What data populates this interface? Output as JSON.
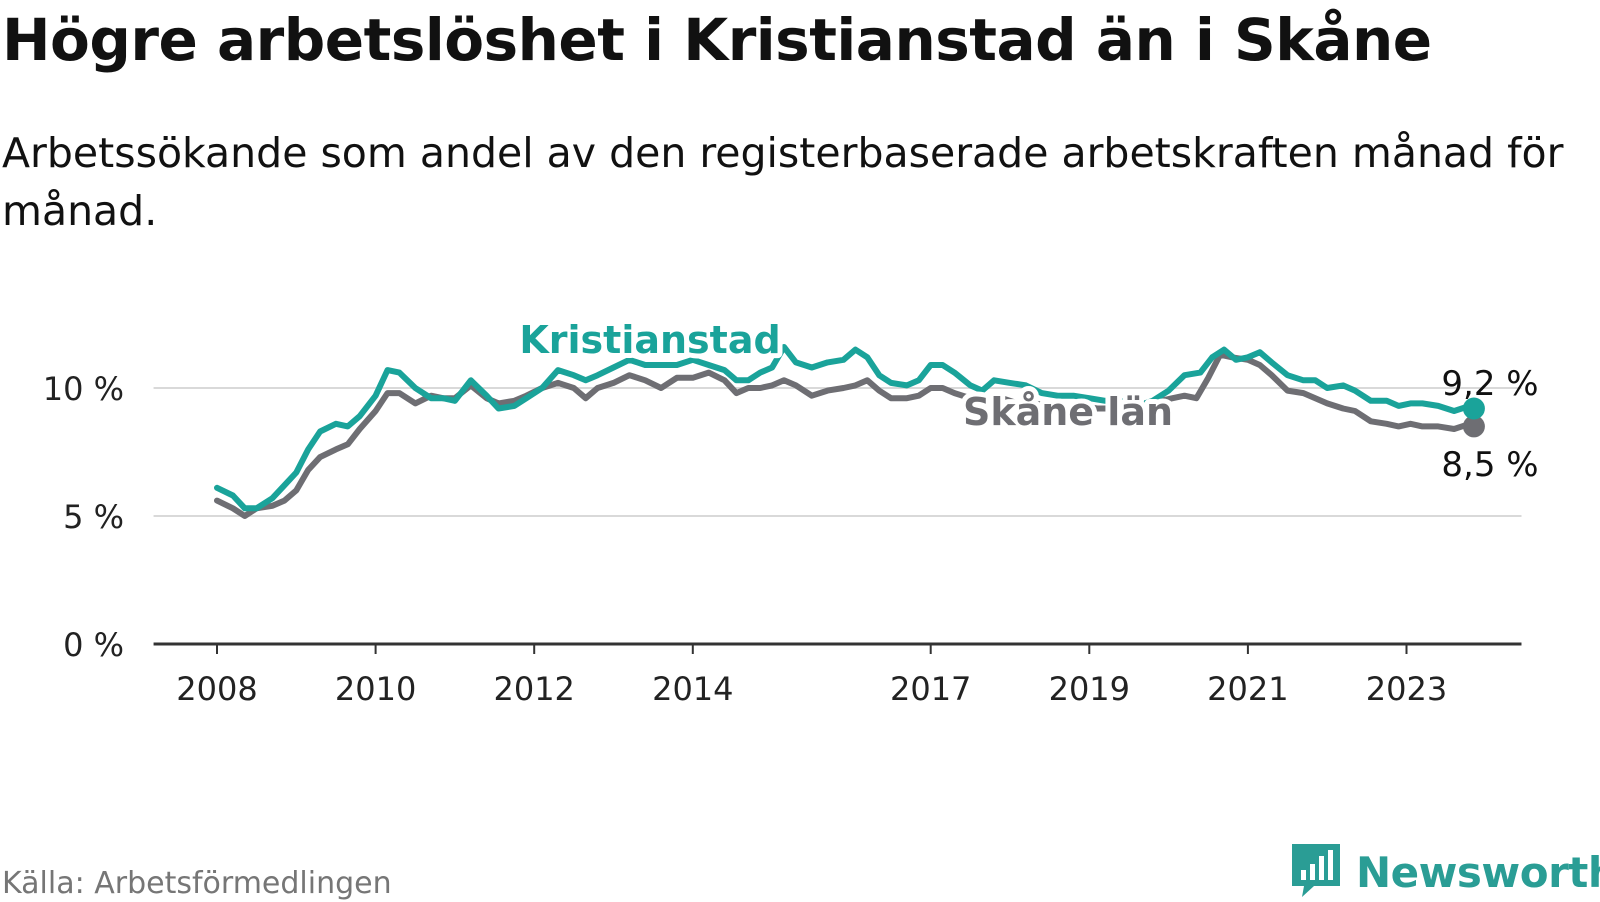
{
  "title": "Högre arbetslöshet i Kristianstad än i Skåne",
  "subtitle": "Arbetssökande som andel av den registerbaserade arbetskraften månad för månad.",
  "source": "Källa: Arbetsförmedlingen",
  "brand": {
    "name": "Newsworthy",
    "icon": "newsworthy-logo-icon",
    "color": "#2a9d95"
  },
  "colors": {
    "kristianstad": "#1aa39a",
    "skane": "#6e6e73",
    "grid": "#d9d9d9",
    "axis": "#333333"
  },
  "chart_data": {
    "type": "line",
    "title": "Högre arbetslöshet i Kristianstad än i Skåne",
    "xlabel": "",
    "ylabel": "",
    "ylim": [
      0,
      10.5
    ],
    "xlim": [
      2007.2,
      2024.45
    ],
    "yticks": [
      0,
      5,
      10
    ],
    "ytick_labels": [
      "0 %",
      "5 %",
      "10 %"
    ],
    "xticks": [
      2008,
      2010,
      2012,
      2014,
      2017,
      2019,
      2021,
      2023
    ],
    "xtick_labels": [
      "2008",
      "2010",
      "2012",
      "2014",
      "2017",
      "2019",
      "2021",
      "2023"
    ],
    "grid": true,
    "series": [
      {
        "name": "Kristianstad",
        "label": "Kristianstad",
        "end_label": "9,2 %",
        "points": [
          [
            2008.0,
            6.1
          ],
          [
            2008.2,
            5.8
          ],
          [
            2008.35,
            5.3
          ],
          [
            2008.5,
            5.3
          ],
          [
            2008.7,
            5.7
          ],
          [
            2008.85,
            6.2
          ],
          [
            2009.0,
            6.7
          ],
          [
            2009.15,
            7.6
          ],
          [
            2009.3,
            8.3
          ],
          [
            2009.5,
            8.6
          ],
          [
            2009.65,
            8.5
          ],
          [
            2009.8,
            8.9
          ],
          [
            2010.0,
            9.7
          ],
          [
            2010.15,
            10.7
          ],
          [
            2010.3,
            10.6
          ],
          [
            2010.5,
            10.0
          ],
          [
            2010.7,
            9.6
          ],
          [
            2010.85,
            9.6
          ],
          [
            2011.0,
            9.5
          ],
          [
            2011.2,
            10.3
          ],
          [
            2011.4,
            9.7
          ],
          [
            2011.55,
            9.2
          ],
          [
            2011.75,
            9.3
          ],
          [
            2011.9,
            9.6
          ],
          [
            2012.1,
            10.0
          ],
          [
            2012.3,
            10.7
          ],
          [
            2012.5,
            10.5
          ],
          [
            2012.65,
            10.3
          ],
          [
            2012.8,
            10.5
          ],
          [
            2013.0,
            10.8
          ],
          [
            2013.2,
            11.1
          ],
          [
            2013.4,
            10.9
          ],
          [
            2013.6,
            10.9
          ],
          [
            2013.8,
            10.9
          ],
          [
            2014.0,
            11.1
          ],
          [
            2014.2,
            10.9
          ],
          [
            2014.4,
            10.7
          ],
          [
            2014.55,
            10.3
          ],
          [
            2014.7,
            10.3
          ],
          [
            2014.85,
            10.6
          ],
          [
            2015.0,
            10.8
          ],
          [
            2015.15,
            11.6
          ],
          [
            2015.3,
            11.0
          ],
          [
            2015.5,
            10.8
          ],
          [
            2015.7,
            11.0
          ],
          [
            2015.9,
            11.1
          ],
          [
            2016.05,
            11.5
          ],
          [
            2016.2,
            11.2
          ],
          [
            2016.35,
            10.5
          ],
          [
            2016.5,
            10.2
          ],
          [
            2016.7,
            10.1
          ],
          [
            2016.85,
            10.3
          ],
          [
            2017.0,
            10.9
          ],
          [
            2017.15,
            10.9
          ],
          [
            2017.3,
            10.6
          ],
          [
            2017.5,
            10.1
          ],
          [
            2017.65,
            9.9
          ],
          [
            2017.8,
            10.3
          ],
          [
            2018.0,
            10.2
          ],
          [
            2018.2,
            10.1
          ],
          [
            2018.4,
            9.8
          ],
          [
            2018.6,
            9.7
          ],
          [
            2018.8,
            9.7
          ],
          [
            2019.0,
            9.6
          ],
          [
            2019.2,
            9.5
          ],
          [
            2019.4,
            9.5
          ],
          [
            2019.6,
            9.3
          ],
          [
            2019.8,
            9.5
          ],
          [
            2020.0,
            9.9
          ],
          [
            2020.2,
            10.5
          ],
          [
            2020.4,
            10.6
          ],
          [
            2020.55,
            11.2
          ],
          [
            2020.7,
            11.5
          ],
          [
            2020.85,
            11.1
          ],
          [
            2021.0,
            11.2
          ],
          [
            2021.15,
            11.4
          ],
          [
            2021.3,
            11.0
          ],
          [
            2021.5,
            10.5
          ],
          [
            2021.7,
            10.3
          ],
          [
            2021.85,
            10.3
          ],
          [
            2022.0,
            10.0
          ],
          [
            2022.2,
            10.1
          ],
          [
            2022.35,
            9.9
          ],
          [
            2022.55,
            9.5
          ],
          [
            2022.75,
            9.5
          ],
          [
            2022.9,
            9.3
          ],
          [
            2023.05,
            9.4
          ],
          [
            2023.2,
            9.4
          ],
          [
            2023.4,
            9.3
          ],
          [
            2023.6,
            9.1
          ],
          [
            2023.8,
            9.3
          ],
          [
            2023.85,
            9.2
          ]
        ]
      },
      {
        "name": "Skåne län",
        "label": "Skåne län",
        "end_label": "8,5 %",
        "points": [
          [
            2008.0,
            5.6
          ],
          [
            2008.2,
            5.3
          ],
          [
            2008.35,
            5.0
          ],
          [
            2008.5,
            5.3
          ],
          [
            2008.7,
            5.4
          ],
          [
            2008.85,
            5.6
          ],
          [
            2009.0,
            6.0
          ],
          [
            2009.15,
            6.8
          ],
          [
            2009.3,
            7.3
          ],
          [
            2009.5,
            7.6
          ],
          [
            2009.65,
            7.8
          ],
          [
            2009.8,
            8.4
          ],
          [
            2010.0,
            9.1
          ],
          [
            2010.15,
            9.8
          ],
          [
            2010.3,
            9.8
          ],
          [
            2010.5,
            9.4
          ],
          [
            2010.7,
            9.7
          ],
          [
            2010.85,
            9.6
          ],
          [
            2011.0,
            9.6
          ],
          [
            2011.2,
            10.1
          ],
          [
            2011.4,
            9.6
          ],
          [
            2011.55,
            9.4
          ],
          [
            2011.75,
            9.5
          ],
          [
            2011.9,
            9.7
          ],
          [
            2012.1,
            10.0
          ],
          [
            2012.3,
            10.2
          ],
          [
            2012.5,
            10.0
          ],
          [
            2012.65,
            9.6
          ],
          [
            2012.8,
            10.0
          ],
          [
            2013.0,
            10.2
          ],
          [
            2013.2,
            10.5
          ],
          [
            2013.4,
            10.3
          ],
          [
            2013.6,
            10.0
          ],
          [
            2013.8,
            10.4
          ],
          [
            2014.0,
            10.4
          ],
          [
            2014.2,
            10.6
          ],
          [
            2014.4,
            10.3
          ],
          [
            2014.55,
            9.8
          ],
          [
            2014.7,
            10.0
          ],
          [
            2014.85,
            10.0
          ],
          [
            2015.0,
            10.1
          ],
          [
            2015.15,
            10.3
          ],
          [
            2015.3,
            10.1
          ],
          [
            2015.5,
            9.7
          ],
          [
            2015.7,
            9.9
          ],
          [
            2015.9,
            10.0
          ],
          [
            2016.05,
            10.1
          ],
          [
            2016.2,
            10.3
          ],
          [
            2016.35,
            9.9
          ],
          [
            2016.5,
            9.6
          ],
          [
            2016.7,
            9.6
          ],
          [
            2016.85,
            9.7
          ],
          [
            2017.0,
            10.0
          ],
          [
            2017.15,
            10.0
          ],
          [
            2017.3,
            9.8
          ],
          [
            2017.5,
            9.6
          ],
          [
            2017.7,
            9.5
          ],
          [
            2017.9,
            9.6
          ],
          [
            2018.1,
            9.4
          ],
          [
            2018.3,
            9.4
          ],
          [
            2018.5,
            9.3
          ],
          [
            2018.7,
            9.2
          ],
          [
            2018.9,
            9.3
          ],
          [
            2019.1,
            9.2
          ],
          [
            2019.3,
            9.2
          ],
          [
            2019.5,
            9.3
          ],
          [
            2019.7,
            9.4
          ],
          [
            2019.9,
            9.5
          ],
          [
            2020.05,
            9.6
          ],
          [
            2020.2,
            9.7
          ],
          [
            2020.35,
            9.6
          ],
          [
            2020.5,
            10.4
          ],
          [
            2020.65,
            11.3
          ],
          [
            2020.8,
            11.2
          ],
          [
            2021.0,
            11.1
          ],
          [
            2021.15,
            10.9
          ],
          [
            2021.3,
            10.5
          ],
          [
            2021.5,
            9.9
          ],
          [
            2021.7,
            9.8
          ],
          [
            2021.85,
            9.6
          ],
          [
            2022.0,
            9.4
          ],
          [
            2022.2,
            9.2
          ],
          [
            2022.35,
            9.1
          ],
          [
            2022.55,
            8.7
          ],
          [
            2022.75,
            8.6
          ],
          [
            2022.9,
            8.5
          ],
          [
            2023.05,
            8.6
          ],
          [
            2023.2,
            8.5
          ],
          [
            2023.4,
            8.5
          ],
          [
            2023.6,
            8.4
          ],
          [
            2023.8,
            8.6
          ],
          [
            2023.85,
            8.5
          ]
        ]
      }
    ]
  }
}
